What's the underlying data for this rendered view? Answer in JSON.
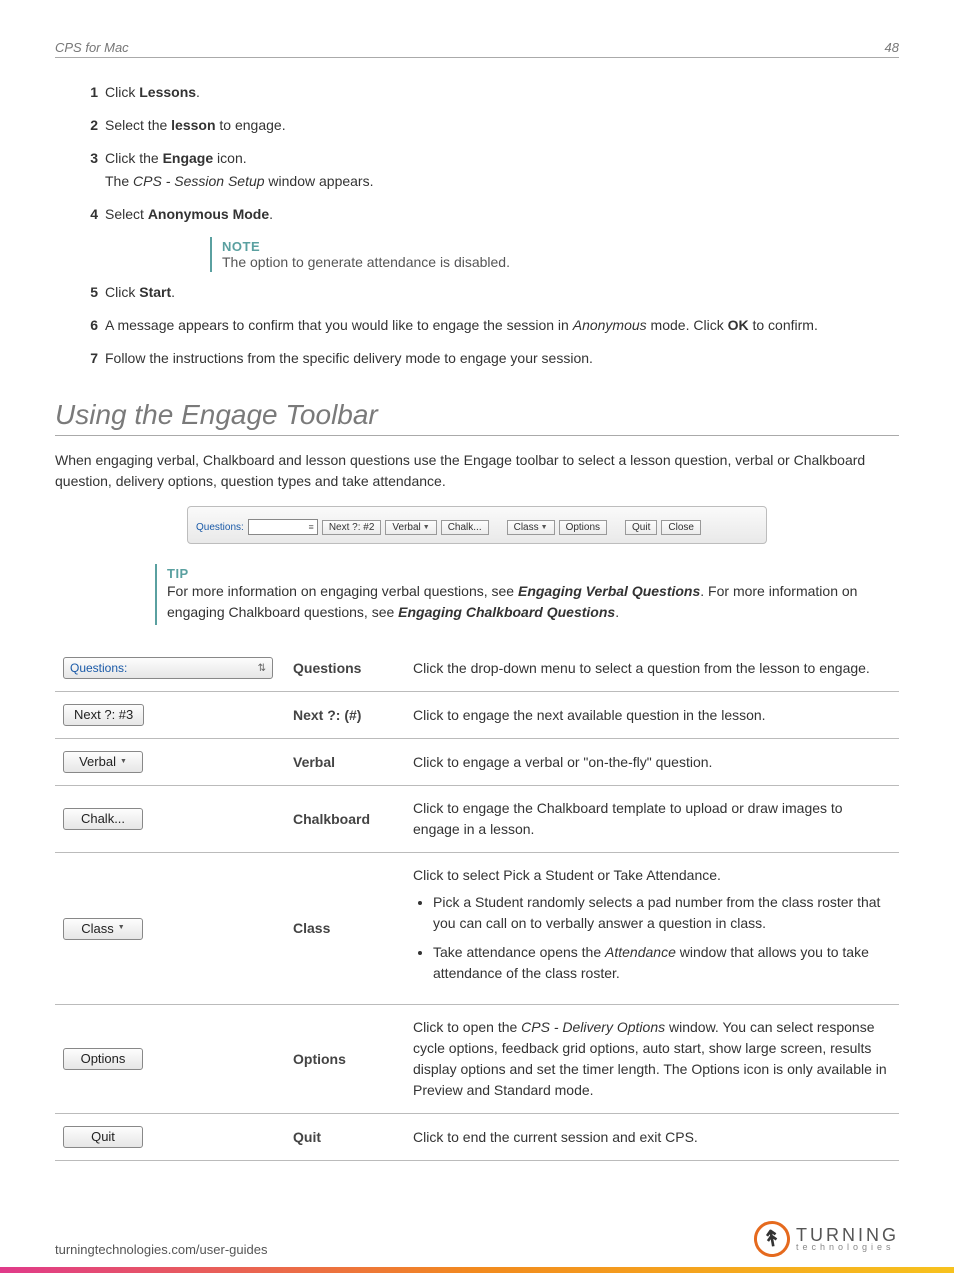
{
  "header": {
    "title": "CPS for Mac",
    "page": "48"
  },
  "steps": [
    {
      "n": "1",
      "parts": [
        {
          "t": "Click "
        },
        {
          "t": "Lessons",
          "b": true
        },
        {
          "t": "."
        }
      ]
    },
    {
      "n": "2",
      "parts": [
        {
          "t": "Select the "
        },
        {
          "t": "lesson",
          "b": true
        },
        {
          "t": " to engage."
        }
      ]
    },
    {
      "n": "3",
      "parts": [
        {
          "t": "Click the "
        },
        {
          "t": "Engage",
          "b": true
        },
        {
          "t": " icon."
        }
      ],
      "sub_parts": [
        {
          "t": "The "
        },
        {
          "t": "CPS - Session Setup",
          "i": true
        },
        {
          "t": " window appears."
        }
      ]
    },
    {
      "n": "4",
      "parts": [
        {
          "t": "Select "
        },
        {
          "t": "Anonymous Mode",
          "b": true
        },
        {
          "t": "."
        }
      ],
      "callout": {
        "title": "NOTE",
        "body": "The option to generate attendance is disabled."
      }
    },
    {
      "n": "5",
      "parts": [
        {
          "t": "Click "
        },
        {
          "t": "Start",
          "b": true
        },
        {
          "t": "."
        }
      ]
    },
    {
      "n": "6",
      "parts": [
        {
          "t": "A message appears to confirm that you would like to engage the session in "
        },
        {
          "t": "Anonymous",
          "i": true
        },
        {
          "t": " mode. Click "
        },
        {
          "t": "OK",
          "b": true
        },
        {
          "t": " to confirm."
        }
      ]
    },
    {
      "n": "7",
      "parts": [
        {
          "t": "Follow the instructions from the specific delivery mode to engage your session."
        }
      ]
    }
  ],
  "section_heading": "Using the Engage Toolbar",
  "section_intro": "When engaging verbal, Chalkboard and lesson questions use the Engage toolbar to select a lesson question, verbal or Chalkboard question, delivery options, question types and take attendance.",
  "toolbar": {
    "questions_label": "Questions:",
    "next": "Next ?: #2",
    "verbal": "Verbal",
    "chalk": "Chalk...",
    "class": "Class",
    "options": "Options",
    "quit": "Quit",
    "close": "Close"
  },
  "tip": {
    "title": "TIP",
    "body_parts": [
      {
        "t": "For more information on engaging verbal questions, see "
      },
      {
        "t": "Engaging Verbal Questions",
        "b": true,
        "i": true
      },
      {
        "t": ". For more information on engaging Chalkboard questions, see "
      },
      {
        "t": "Engaging Chalkboard Questions",
        "b": true,
        "i": true
      },
      {
        "t": "."
      }
    ]
  },
  "table": [
    {
      "icon": {
        "type": "dropdown",
        "label": "Questions:"
      },
      "name": "Questions",
      "desc_parts": [
        {
          "t": "Click the drop-down menu to select a question from the lesson to engage."
        }
      ]
    },
    {
      "icon": {
        "type": "button",
        "label": "Next ?: #3"
      },
      "name": "Next ?: (#)",
      "desc_parts": [
        {
          "t": "Click to engage the next available question in the lesson."
        }
      ]
    },
    {
      "icon": {
        "type": "button-dd",
        "label": "Verbal"
      },
      "name": "Verbal",
      "desc_parts": [
        {
          "t": "Click to engage a verbal or \"on-the-fly\" question."
        }
      ]
    },
    {
      "icon": {
        "type": "button",
        "label": "Chalk..."
      },
      "name": "Chalkboard",
      "desc_parts": [
        {
          "t": "Click to engage the Chalkboard template to upload or draw images to engage in a lesson."
        }
      ]
    },
    {
      "icon": {
        "type": "button-dd",
        "label": "Class"
      },
      "name": "Class",
      "desc_parts": [
        {
          "t": "Click to select Pick a Student or Take Attendance."
        }
      ],
      "bullets": [
        [
          {
            "t": "Pick a Student randomly selects a pad number from the class roster that you can call on to verbally answer a question in class."
          }
        ],
        [
          {
            "t": "Take attendance opens the "
          },
          {
            "t": "Attendance",
            "i": true
          },
          {
            "t": " window that allows you to take attendance of the class roster."
          }
        ]
      ]
    },
    {
      "icon": {
        "type": "button",
        "label": "Options"
      },
      "name": "Options",
      "desc_parts": [
        {
          "t": "Click to open the "
        },
        {
          "t": "CPS - Delivery Options",
          "i": true
        },
        {
          "t": " window. You can select response cycle options, feedback grid options, auto start, show large screen, results display options and set the timer length. The Options icon is only available in Preview and Standard mode."
        }
      ]
    },
    {
      "icon": {
        "type": "button",
        "label": "Quit"
      },
      "name": "Quit",
      "desc_parts": [
        {
          "t": "Click to end the current session and exit CPS."
        }
      ]
    }
  ],
  "footer": {
    "url": "turningtechnologies.com/user-guides",
    "logo_big": "TURNING",
    "logo_small": "technologies"
  }
}
